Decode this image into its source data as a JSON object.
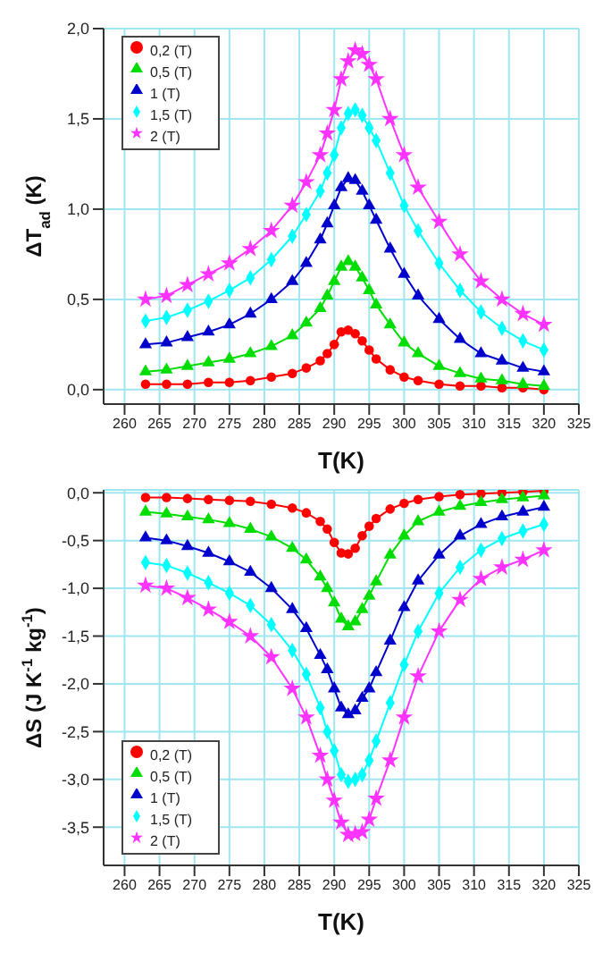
{
  "chart_data": [
    {
      "type": "line",
      "ylabel": "ΔT$_{ad}$ (K)",
      "xlabel": "T(K)",
      "grid": true,
      "legend": "top left",
      "xlim": [
        257,
        325
      ],
      "xticks": [
        260,
        265,
        270,
        275,
        280,
        285,
        290,
        295,
        300,
        305,
        310,
        315,
        320,
        325
      ],
      "ylim": [
        -0.08,
        2.0
      ],
      "yticks": [
        {
          "value": 0,
          "label": "0,0"
        },
        {
          "value": 0.5,
          "label": "0,5"
        },
        {
          "value": 1,
          "label": "1,0"
        },
        {
          "value": 1.5,
          "label": "1,5"
        },
        {
          "value": 2,
          "label": "2,0"
        }
      ],
      "x": [
        263,
        266,
        269,
        272,
        275,
        278,
        281,
        284,
        286,
        288,
        289,
        290,
        291,
        292,
        293,
        294,
        295,
        296,
        298,
        300,
        302,
        305,
        308,
        311,
        314,
        317,
        320
      ],
      "series": [
        {
          "name": "0,2 (T)",
          "color": "#ff0000",
          "marker": "circle",
          "values": [
            0.03,
            0.03,
            0.03,
            0.04,
            0.04,
            0.05,
            0.07,
            0.09,
            0.12,
            0.16,
            0.2,
            0.25,
            0.32,
            0.33,
            0.31,
            0.27,
            0.22,
            0.17,
            0.11,
            0.07,
            0.05,
            0.03,
            0.02,
            0.02,
            0.01,
            0.01,
            0.0
          ]
        },
        {
          "name": "0,5 (T)",
          "color": "#00dd00",
          "marker": "triangle",
          "values": [
            0.1,
            0.11,
            0.13,
            0.15,
            0.17,
            0.2,
            0.24,
            0.3,
            0.37,
            0.45,
            0.52,
            0.6,
            0.68,
            0.71,
            0.68,
            0.62,
            0.55,
            0.47,
            0.36,
            0.26,
            0.2,
            0.13,
            0.09,
            0.06,
            0.05,
            0.03,
            0.02
          ]
        },
        {
          "name": "1 (T)",
          "color": "#0000cc",
          "marker": "triangle",
          "values": [
            0.25,
            0.26,
            0.29,
            0.32,
            0.36,
            0.42,
            0.5,
            0.6,
            0.7,
            0.83,
            0.92,
            1.02,
            1.12,
            1.17,
            1.16,
            1.1,
            1.02,
            0.94,
            0.78,
            0.64,
            0.52,
            0.39,
            0.28,
            0.2,
            0.16,
            0.12,
            0.1
          ]
        },
        {
          "name": "1,5 (T)",
          "color": "#00ffff",
          "marker": "diamond",
          "values": [
            0.38,
            0.4,
            0.44,
            0.49,
            0.55,
            0.62,
            0.72,
            0.85,
            0.97,
            1.1,
            1.2,
            1.3,
            1.45,
            1.53,
            1.55,
            1.52,
            1.45,
            1.38,
            1.2,
            1.02,
            0.88,
            0.7,
            0.55,
            0.43,
            0.34,
            0.27,
            0.22
          ]
        },
        {
          "name": "2 (T)",
          "color": "#ff33ff",
          "marker": "star",
          "values": [
            0.5,
            0.52,
            0.58,
            0.64,
            0.7,
            0.78,
            0.88,
            1.02,
            1.15,
            1.3,
            1.42,
            1.55,
            1.72,
            1.82,
            1.88,
            1.86,
            1.8,
            1.72,
            1.5,
            1.3,
            1.12,
            0.93,
            0.75,
            0.6,
            0.5,
            0.42,
            0.36
          ]
        }
      ]
    },
    {
      "type": "line",
      "ylabel": "ΔS (J K$^{-1}$ kg$^{-1}$)",
      "xlabel": "T(K)",
      "grid": true,
      "legend": "bottom left",
      "xlim": [
        257,
        325
      ],
      "xticks": [
        260,
        265,
        270,
        275,
        280,
        285,
        290,
        295,
        300,
        305,
        310,
        315,
        320,
        325
      ],
      "ylim": [
        -3.9,
        0.03
      ],
      "yticks": [
        {
          "value": 0,
          "label": "0,0"
        },
        {
          "value": -0.5,
          "label": "-0,5"
        },
        {
          "value": -1,
          "label": "-1,0"
        },
        {
          "value": -1.5,
          "label": "-1,5"
        },
        {
          "value": -2,
          "label": "-2,0"
        },
        {
          "value": -2.5,
          "label": "-2,5"
        },
        {
          "value": -3,
          "label": "-3,0"
        },
        {
          "value": -3.5,
          "label": "-3,5"
        }
      ],
      "x": [
        263,
        266,
        269,
        272,
        275,
        278,
        281,
        284,
        286,
        288,
        289,
        290,
        291,
        292,
        293,
        294,
        295,
        296,
        298,
        300,
        302,
        305,
        308,
        311,
        314,
        317,
        320
      ],
      "series": [
        {
          "name": "0,2 (T)",
          "color": "#ff0000",
          "marker": "circle",
          "values": [
            -0.05,
            -0.05,
            -0.06,
            -0.07,
            -0.08,
            -0.09,
            -0.12,
            -0.16,
            -0.21,
            -0.3,
            -0.38,
            -0.52,
            -0.63,
            -0.64,
            -0.58,
            -0.45,
            -0.35,
            -0.27,
            -0.17,
            -0.11,
            -0.07,
            -0.04,
            -0.02,
            -0.01,
            0.0,
            0.01,
            0.02
          ]
        },
        {
          "name": "0,5 (T)",
          "color": "#00dd00",
          "marker": "triangle",
          "values": [
            -0.2,
            -0.22,
            -0.25,
            -0.28,
            -0.32,
            -0.38,
            -0.46,
            -0.58,
            -0.7,
            -0.88,
            -1.0,
            -1.15,
            -1.32,
            -1.4,
            -1.35,
            -1.22,
            -1.08,
            -0.93,
            -0.65,
            -0.45,
            -0.3,
            -0.2,
            -0.14,
            -0.1,
            -0.07,
            -0.05,
            -0.03
          ]
        },
        {
          "name": "1 (T)",
          "color": "#0000cc",
          "marker": "triangle",
          "values": [
            -0.47,
            -0.5,
            -0.56,
            -0.63,
            -0.72,
            -0.83,
            -1.0,
            -1.22,
            -1.42,
            -1.7,
            -1.85,
            -2.05,
            -2.25,
            -2.32,
            -2.28,
            -2.15,
            -2.05,
            -1.88,
            -1.55,
            -1.2,
            -0.92,
            -0.65,
            -0.45,
            -0.33,
            -0.25,
            -0.2,
            -0.15
          ]
        },
        {
          "name": "1,5 (T)",
          "color": "#00ffff",
          "marker": "diamond",
          "values": [
            -0.73,
            -0.76,
            -0.84,
            -0.94,
            -1.05,
            -1.18,
            -1.38,
            -1.65,
            -1.9,
            -2.25,
            -2.5,
            -2.7,
            -2.95,
            -3.02,
            -3.0,
            -2.95,
            -2.8,
            -2.6,
            -2.2,
            -1.8,
            -1.45,
            -1.05,
            -0.78,
            -0.6,
            -0.48,
            -0.4,
            -0.33
          ]
        },
        {
          "name": "2 (T)",
          "color": "#ff33ff",
          "marker": "star",
          "values": [
            -0.97,
            -1.0,
            -1.1,
            -1.22,
            -1.35,
            -1.5,
            -1.72,
            -2.05,
            -2.35,
            -2.75,
            -3.0,
            -3.22,
            -3.45,
            -3.58,
            -3.57,
            -3.55,
            -3.42,
            -3.2,
            -2.8,
            -2.35,
            -1.92,
            -1.45,
            -1.12,
            -0.9,
            -0.78,
            -0.7,
            -0.6
          ]
        }
      ]
    }
  ]
}
